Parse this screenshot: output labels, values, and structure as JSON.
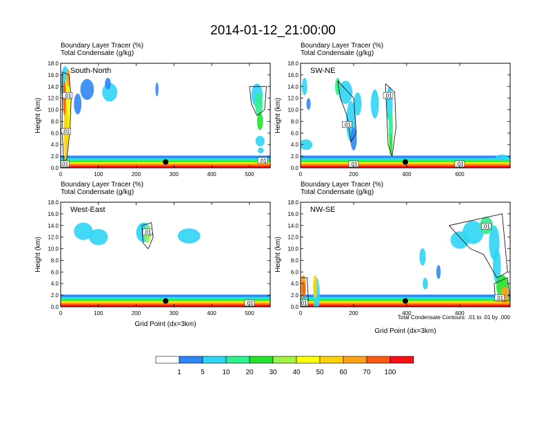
{
  "figure": {
    "title": "2014-01-12_21:00:00",
    "footnote": "Total Condensate Contours: .01 to .01 by .000"
  },
  "colorbar": {
    "colors": [
      "#ffffff",
      "#2f86f5",
      "#2fd5f5",
      "#2ef08c",
      "#22e32d",
      "#a2f246",
      "#fefe06",
      "#fed10b",
      "#fda11a",
      "#fb5a13",
      "#fa1014"
    ],
    "labels": [
      "1",
      "5",
      "10",
      "20",
      "30",
      "40",
      "50",
      "60",
      "70",
      "100"
    ]
  },
  "chart_data": [
    {
      "type": "heatmap",
      "panel": "South-North",
      "header_line1": "Boundary Layer Tracer   (%)",
      "header_line2": "Total Condensate   (g/kg)",
      "ylabel": "Height (km)",
      "xlabel": "",
      "xlim": [
        0,
        555
      ],
      "ylim": [
        0,
        18
      ],
      "xticks": [
        "0",
        "100",
        "200",
        "300",
        "400",
        "500"
      ],
      "xtick_values": [
        0,
        100,
        200,
        300,
        400,
        500
      ],
      "yticks": [
        "0.0",
        "2.0",
        "4.0",
        "6.0",
        "8.0",
        "10.0",
        "12.0",
        "14.0",
        "16.0",
        "18.0"
      ],
      "contour_labels": [
        ".01",
        ".01",
        ".01",
        ".01"
      ],
      "marker_x": 278
    },
    {
      "type": "heatmap",
      "panel": "SW-NE",
      "header_line1": "Boundary Layer Tracer   (%)",
      "header_line2": "Total Condensate   (g/kg)",
      "ylabel": "Height (km)",
      "xlabel": "",
      "xlim": [
        0,
        790
      ],
      "ylim": [
        0,
        18
      ],
      "xticks": [
        "0",
        "200",
        "400",
        "600"
      ],
      "xtick_values": [
        0,
        200,
        400,
        600
      ],
      "yticks": [
        "0.0",
        "2.0",
        "4.0",
        "6.0",
        "8.0",
        "10.0",
        "12.0",
        "14.0",
        "16.0",
        "18.0"
      ],
      "contour_labels": [
        ".01",
        ".01",
        ".01",
        ".01"
      ],
      "marker_x": 395
    },
    {
      "type": "heatmap",
      "panel": "West-East",
      "header_line1": "Boundary Layer Tracer   (%)",
      "header_line2": "Total Condensate   (g/kg)",
      "ylabel": "Height (km)",
      "xlabel": "Grid Point (dx=3km)",
      "xlim": [
        0,
        555
      ],
      "ylim": [
        0,
        18
      ],
      "xticks": [
        "0",
        "100",
        "200",
        "300",
        "400",
        "500"
      ],
      "xtick_values": [
        0,
        100,
        200,
        300,
        400,
        500
      ],
      "yticks": [
        "0.0",
        "2.0",
        "4.0",
        "6.0",
        "8.0",
        "10.0",
        "12.0",
        "14.0",
        "16.0",
        "18.0"
      ],
      "contour_labels": [
        ".01",
        ".01"
      ],
      "marker_x": 278
    },
    {
      "type": "heatmap",
      "panel": "NW-SE",
      "header_line1": "Boundary Layer Tracer   (%)",
      "header_line2": "Total Condensate   (g/kg)",
      "ylabel": "Height (km)",
      "xlabel": "Grid Point (dx=3km)",
      "xlim": [
        0,
        790
      ],
      "ylim": [
        0,
        18
      ],
      "xticks": [
        "0",
        "200",
        "400",
        "600"
      ],
      "xtick_values": [
        0,
        200,
        400,
        600
      ],
      "yticks": [
        "0.0",
        "2.0",
        "4.0",
        "6.0",
        "8.0",
        "10.0",
        "12.0",
        "14.0",
        "16.0",
        "18.0"
      ],
      "contour_labels": [
        ".01",
        ".01",
        ".01"
      ],
      "marker_x": 395
    }
  ]
}
